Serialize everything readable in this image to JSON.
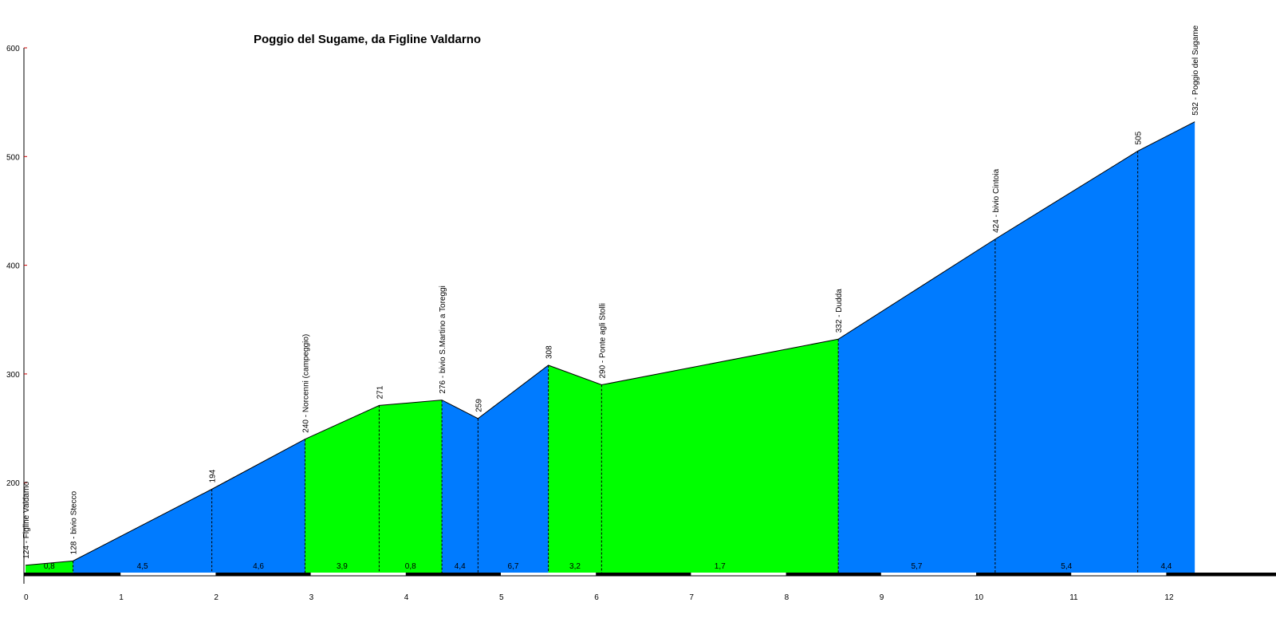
{
  "chart_data": {
    "type": "area",
    "title": "Poggio del Sugame, da Figline Valdarno",
    "xlabel": "",
    "ylabel": "",
    "xlim": [
      0,
      12.9
    ],
    "ylim": [
      120,
      600
    ],
    "x_ticks": [
      "0",
      "1",
      "2",
      "3",
      "4",
      "5",
      "6",
      "7",
      "8",
      "9",
      "10",
      "11",
      "12"
    ],
    "y_ticks": [
      "200",
      "300",
      "400",
      "500",
      "600"
    ],
    "colors": {
      "steep": "#007bff",
      "gentle": "#00ff00",
      "axis": "#000000",
      "ytick_mark": "#cc0000"
    },
    "profile": [
      {
        "x": 0.0,
        "y": 124
      },
      {
        "x": 0.5,
        "y": 128
      },
      {
        "x": 1.96,
        "y": 194
      },
      {
        "x": 2.94,
        "y": 240
      },
      {
        "x": 3.72,
        "y": 271
      },
      {
        "x": 4.38,
        "y": 276
      },
      {
        "x": 4.76,
        "y": 259
      },
      {
        "x": 5.5,
        "y": 308
      },
      {
        "x": 6.06,
        "y": 290
      },
      {
        "x": 8.55,
        "y": 332
      },
      {
        "x": 10.2,
        "y": 424
      },
      {
        "x": 11.7,
        "y": 505
      },
      {
        "x": 12.3,
        "y": 532
      }
    ],
    "segments": [
      {
        "grade": "0,8",
        "color": "gentle"
      },
      {
        "grade": "4,5",
        "color": "steep"
      },
      {
        "grade": "4,6",
        "color": "steep"
      },
      {
        "grade": "3,9",
        "color": "gentle"
      },
      {
        "grade": "0,8",
        "color": "gentle"
      },
      {
        "grade": "4,4",
        "color": "steep"
      },
      {
        "grade": "6,7",
        "color": "steep"
      },
      {
        "grade": "3,2",
        "color": "gentle"
      },
      {
        "grade": "1,7",
        "color": "gentle"
      },
      {
        "grade": "5,7",
        "color": "steep"
      },
      {
        "grade": "5,4",
        "color": "steep"
      },
      {
        "grade": "4,4",
        "color": "steep"
      }
    ],
    "waypoint_labels": [
      "124 - Figline Valdarno",
      "128 - bivio Stecco",
      "194",
      "240 - Norcenni (campeggio)",
      "271",
      "276 - bivio S.Martino a Toreggi",
      "259",
      "308",
      "290 - Ponte agli Stolli",
      "332 - Dudda",
      "424 - bivio Cintoia",
      "505",
      "532 - Poggio del Sugame"
    ]
  }
}
